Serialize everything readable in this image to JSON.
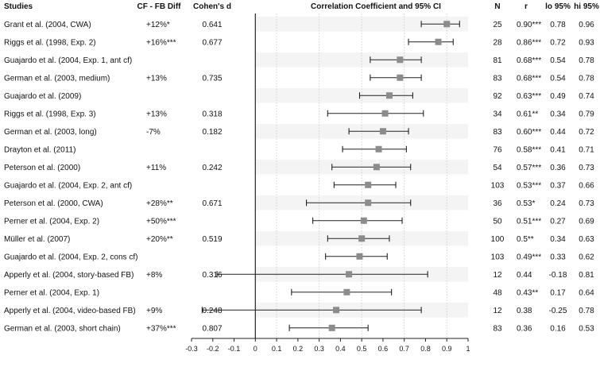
{
  "chart_data": {
    "type": "forest",
    "columns": {
      "study": "Studies",
      "diff": "CF - FB Diff",
      "d": "Cohen's d",
      "plot": "Correlation Coefficient and 95% CI",
      "n": "N",
      "r": "r",
      "lo": "lo 95%",
      "hi": "hi 95%"
    },
    "xlim": [
      -0.3,
      1
    ],
    "xticks": [
      "-0.3",
      "-0.2",
      "-0.1",
      "0",
      "0.1",
      "0.2",
      "0.3",
      "0.4",
      "0.5",
      "0.6",
      "0.7",
      "0.8",
      "0.9",
      "1"
    ],
    "gridlines": [
      0.1,
      0.3,
      0.5,
      0.7,
      0.9
    ],
    "rows": [
      {
        "study": "Grant et al. (2004, CWA)",
        "diff": "+12%*",
        "d": "0.641",
        "n": "25",
        "r_label": "0.90***",
        "lo_label": "0.78",
        "hi_label": "0.96",
        "r": 0.9,
        "lo": 0.78,
        "hi": 0.96
      },
      {
        "study": "Riggs et al. (1998, Exp. 2)",
        "diff": "+16%***",
        "d": "0.677",
        "n": "28",
        "r_label": "0.86***",
        "lo_label": "0.72",
        "hi_label": "0.93",
        "r": 0.86,
        "lo": 0.72,
        "hi": 0.93
      },
      {
        "study": "Guajardo et al. (2004, Exp. 1, ant cf)",
        "diff": "",
        "d": "",
        "n": "81",
        "r_label": "0.68***",
        "lo_label": "0.54",
        "hi_label": "0.78",
        "r": 0.68,
        "lo": 0.54,
        "hi": 0.78
      },
      {
        "study": "German et al. (2003, medium)",
        "diff": "+13%",
        "d": "0.735",
        "n": "83",
        "r_label": "0.68***",
        "lo_label": "0.54",
        "hi_label": "0.78",
        "r": 0.68,
        "lo": 0.54,
        "hi": 0.78
      },
      {
        "study": "Guajardo et al. (2009)",
        "diff": "",
        "d": "",
        "n": "92",
        "r_label": "0.63***",
        "lo_label": "0.49",
        "hi_label": "0.74",
        "r": 0.63,
        "lo": 0.49,
        "hi": 0.74
      },
      {
        "study": "Riggs et al. (1998, Exp. 3)",
        "diff": "+13%",
        "d": "0.318",
        "n": "34",
        "r_label": "0.61**",
        "lo_label": "0.34",
        "hi_label": "0.79",
        "r": 0.61,
        "lo": 0.34,
        "hi": 0.79
      },
      {
        "study": "German et al. (2003, long)",
        "diff": "-7%",
        "d": "0.182",
        "n": "83",
        "r_label": "0.60***",
        "lo_label": "0.44",
        "hi_label": "0.72",
        "r": 0.6,
        "lo": 0.44,
        "hi": 0.72
      },
      {
        "study": "Drayton et al. (2011)",
        "diff": "",
        "d": "",
        "n": "76",
        "r_label": "0.58***",
        "lo_label": "0.41",
        "hi_label": "0.71",
        "r": 0.58,
        "lo": 0.41,
        "hi": 0.71
      },
      {
        "study": "Peterson et al. (2000)",
        "diff": "+11%",
        "d": "0.242",
        "n": "54",
        "r_label": "0.57***",
        "lo_label": "0.36",
        "hi_label": "0.73",
        "r": 0.57,
        "lo": 0.36,
        "hi": 0.73
      },
      {
        "study": "Guajardo et al. (2004, Exp. 2, ant cf)",
        "diff": "",
        "d": "",
        "n": "103",
        "r_label": "0.53***",
        "lo_label": "0.37",
        "hi_label": "0.66",
        "r": 0.53,
        "lo": 0.37,
        "hi": 0.66
      },
      {
        "study": "Peterson et al. (2000, CWA)",
        "diff": "+28%**",
        "d": "0.671",
        "n": "36",
        "r_label": "0.53*",
        "lo_label": "0.24",
        "hi_label": "0.73",
        "r": 0.53,
        "lo": 0.24,
        "hi": 0.73
      },
      {
        "study": "Perner et al. (2004, Exp. 2)",
        "diff": "+50%***",
        "d": "",
        "n": "50",
        "r_label": "0.51***",
        "lo_label": "0.27",
        "hi_label": "0.69",
        "r": 0.51,
        "lo": 0.27,
        "hi": 0.69
      },
      {
        "study": "Müller et al. (2007)",
        "diff": "+20%**",
        "d": "0.519",
        "n": "100",
        "r_label": "0.5**",
        "lo_label": "0.34",
        "hi_label": "0.63",
        "r": 0.5,
        "lo": 0.34,
        "hi": 0.63
      },
      {
        "study": "Guajardo et al. (2004, Exp. 2, cons cf)",
        "diff": "",
        "d": "",
        "n": "103",
        "r_label": "0.49***",
        "lo_label": "0.33",
        "hi_label": "0.62",
        "r": 0.49,
        "lo": 0.33,
        "hi": 0.62
      },
      {
        "study": "Apperly et al. (2004, story-based FB)",
        "diff": "+8%",
        "d": "0.316",
        "n": "12",
        "r_label": "0.44",
        "lo_label": "-0.18",
        "hi_label": "0.81",
        "r": 0.44,
        "lo": -0.18,
        "hi": 0.81
      },
      {
        "study": "Perner et al. (2004, Exp. 1)",
        "diff": "",
        "d": "",
        "n": "48",
        "r_label": "0.43**",
        "lo_label": "0.17",
        "hi_label": "0.64",
        "r": 0.43,
        "lo": 0.17,
        "hi": 0.64
      },
      {
        "study": "Apperly et al. (2004, video-based FB)",
        "diff": "+9%",
        "d": "0.248",
        "n": "12",
        "r_label": "0.38",
        "lo_label": "-0.25",
        "hi_label": "0.78",
        "r": 0.38,
        "lo": -0.25,
        "hi": 0.78
      },
      {
        "study": "German et al. (2003, short chain)",
        "diff": "+37%***",
        "d": "0.807",
        "n": "83",
        "r_label": "0.36",
        "lo_label": "0.16",
        "hi_label": "0.53",
        "r": 0.36,
        "lo": 0.16,
        "hi": 0.53
      }
    ],
    "colors": {
      "marker": "#8c8c8c",
      "ci_line": "#222222",
      "row_shade": "#f4f4f4",
      "gridline": "#c8c8c8",
      "axis": "#222222"
    }
  }
}
